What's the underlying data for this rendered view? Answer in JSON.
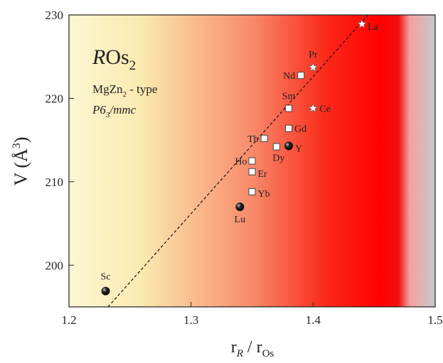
{
  "chart_data": {
    "type": "scatter",
    "title": [
      "R",
      "Os",
      "2"
    ],
    "annotations": [
      [
        "MgZn",
        "2",
        " - type"
      ],
      [
        "P6",
        "3",
        "/mmc"
      ]
    ],
    "x_label": [
      "r",
      "R",
      " / r",
      "Os"
    ],
    "y_label": [
      "V (Å",
      "3",
      ")"
    ],
    "xlim": [
      1.2,
      1.5
    ],
    "ylim": [
      195,
      230
    ],
    "xticks": [
      1.2,
      1.3,
      1.4,
      1.5
    ],
    "yticks": [
      200,
      210,
      220,
      230
    ],
    "points": [
      {
        "label": "La",
        "x": 1.44,
        "y": 228.9,
        "marker": "star"
      },
      {
        "label": "Pr",
        "x": 1.4,
        "y": 223.7,
        "marker": "star"
      },
      {
        "label": "Nd",
        "x": 1.39,
        "y": 222.75,
        "marker": "square"
      },
      {
        "label": "Sm",
        "x": 1.38,
        "y": 218.8,
        "marker": "square"
      },
      {
        "label": "Ce",
        "x": 1.4,
        "y": 218.8,
        "marker": "star"
      },
      {
        "label": "Gd",
        "x": 1.38,
        "y": 216.4,
        "marker": "square"
      },
      {
        "label": "Tb",
        "x": 1.36,
        "y": 215.2,
        "marker": "square"
      },
      {
        "label": "Y",
        "x": 1.38,
        "y": 214.3,
        "marker": "circle"
      },
      {
        "label": "Dy",
        "x": 1.37,
        "y": 214.2,
        "marker": "square"
      },
      {
        "label": "Ho",
        "x": 1.35,
        "y": 212.5,
        "marker": "square"
      },
      {
        "label": "Er",
        "x": 1.35,
        "y": 211.2,
        "marker": "square"
      },
      {
        "label": "Yb",
        "x": 1.35,
        "y": 208.8,
        "marker": "square"
      },
      {
        "label": "Lu",
        "x": 1.34,
        "y": 207.0,
        "marker": "circle"
      },
      {
        "label": "Sc",
        "x": 1.23,
        "y": 196.9,
        "marker": "circle"
      }
    ],
    "trend_line": {
      "x": [
        1.232,
        1.445
      ],
      "y": [
        195,
        230
      ]
    }
  }
}
